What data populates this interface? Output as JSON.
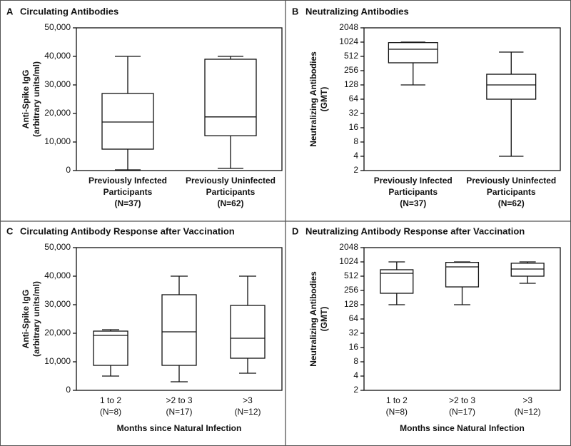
{
  "chart_data": [
    {
      "type": "box",
      "label": "A",
      "title": "Circulating Antibodies",
      "ylabel": [
        "Anti-Spike IgG",
        "(arbitrary units/ml)"
      ],
      "categories": [
        [
          "Previously Infected",
          "Participants",
          "(N=37)"
        ],
        [
          "Previously Uninfected",
          "Participants",
          "(N=62)"
        ]
      ],
      "min": [
        250,
        750
      ],
      "q1": [
        7500,
        12200
      ],
      "median": [
        17000,
        18800
      ],
      "q3": [
        27000,
        39000
      ],
      "max": [
        40000,
        40000
      ],
      "ylim": [
        0,
        50000
      ],
      "yscale": "linear",
      "yticks": [
        0,
        {
          "value": 10000,
          "label": "10,000"
        },
        {
          "value": 20000,
          "label": "20,000"
        },
        {
          "value": 30000,
          "label": "30,000"
        },
        {
          "value": 40000,
          "label": "40,000"
        },
        {
          "value": 50000,
          "label": "50,000"
        }
      ]
    },
    {
      "type": "box",
      "label": "B",
      "title": "Neutralizing Antibodies",
      "ylabel": [
        "Neutralizing Antibodies",
        "(GMT)"
      ],
      "categories": [
        [
          "Previously Infected",
          "Participants",
          "(N=37)"
        ],
        [
          "Previously Uninfected",
          "Participants",
          "(N=62)"
        ]
      ],
      "min": [
        128,
        4
      ],
      "q1": [
        375,
        64
      ],
      "median": [
        724,
        128
      ],
      "q3": [
        1000,
        215
      ],
      "max": [
        1024,
        630
      ],
      "ylim": [
        2,
        2048
      ],
      "yscale": "log",
      "yticks": [
        2,
        4,
        8,
        16,
        32,
        64,
        128,
        256,
        512,
        1024,
        2048
      ]
    },
    {
      "type": "box",
      "label": "C",
      "title": "Circulating Antibody Response after Vaccination",
      "ylabel": [
        "Anti-Spike IgG",
        "(arbitrary units/ml)"
      ],
      "xlabel": "Months since Natural Infection",
      "categories": [
        [
          "1 to 2",
          "(N=8)"
        ],
        [
          ">2 to 3",
          "(N=17)"
        ],
        [
          ">3",
          "(N=12)"
        ]
      ],
      "min": [
        5000,
        3000,
        6000
      ],
      "q1": [
        8750,
        8750,
        11250
      ],
      "median": [
        19250,
        20500,
        18250
      ],
      "q3": [
        20750,
        33500,
        29750
      ],
      "max": [
        21250,
        40000,
        40000
      ],
      "ylim": [
        0,
        50000
      ],
      "yscale": "linear",
      "yticks": [
        0,
        {
          "value": 10000,
          "label": "10,000"
        },
        {
          "value": 20000,
          "label": "20,000"
        },
        {
          "value": 30000,
          "label": "30,000"
        },
        {
          "value": 40000,
          "label": "40,000"
        },
        {
          "value": 50000,
          "label": "50,000"
        }
      ]
    },
    {
      "type": "box",
      "label": "D",
      "title": "Neutralizing Antibody Response after Vaccination",
      "ylabel": [
        "Neutralizing Antibodies",
        "(GMT)"
      ],
      "xlabel": "Months since Natural Infection",
      "categories": [
        [
          "1 to 2",
          "(N=8)"
        ],
        [
          ">2 to 3",
          "(N=17)"
        ],
        [
          ">3",
          "(N=12)"
        ]
      ],
      "min": [
        128,
        128,
        362
      ],
      "q1": [
        223,
        304,
        512
      ],
      "median": [
        588,
        803,
        724
      ],
      "q3": [
        700,
        1000,
        960
      ],
      "max": [
        1024,
        1024,
        1024
      ],
      "ylim": [
        2,
        2048
      ],
      "yscale": "log",
      "yticks": [
        2,
        4,
        8,
        16,
        32,
        64,
        128,
        256,
        512,
        1024,
        2048
      ]
    }
  ]
}
